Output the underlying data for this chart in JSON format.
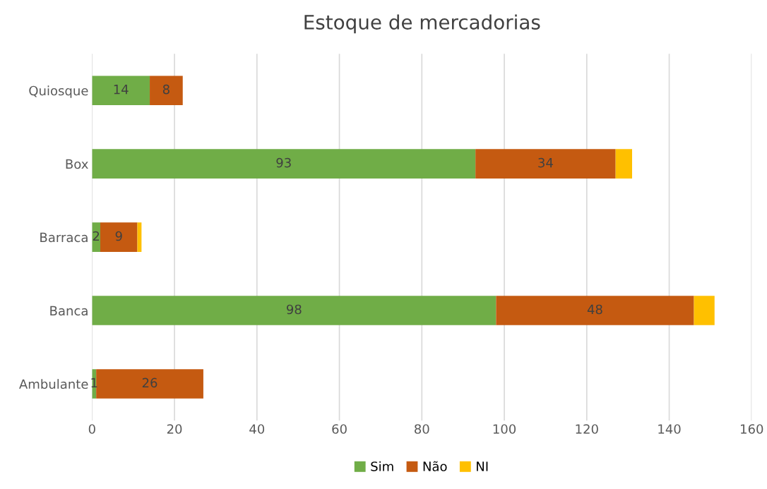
{
  "chart_data": {
    "type": "bar",
    "orientation": "horizontal",
    "stacked": true,
    "title": "Estoque de mercadorias",
    "categories": [
      "Quiosque",
      "Box",
      "Barraca",
      "Banca",
      "Ambulante"
    ],
    "series": [
      {
        "name": "Sim",
        "color": "#70ad47",
        "values": [
          14,
          93,
          2,
          98,
          1
        ],
        "value_labels": [
          "14",
          "93",
          "2",
          "98",
          "1"
        ]
      },
      {
        "name": "Não",
        "color": "#c55a11",
        "values": [
          8,
          34,
          9,
          48,
          26
        ],
        "value_labels": [
          "8",
          "34",
          "9",
          "48",
          "26"
        ]
      },
      {
        "name": "NI",
        "color": "#ffc000",
        "values": [
          null,
          4,
          1,
          5,
          null
        ]
      }
    ],
    "xlim": [
      0,
      160
    ],
    "xticks": [
      0,
      20,
      40,
      60,
      80,
      100,
      120,
      140,
      160
    ],
    "grid": "x",
    "legend": "bottom"
  }
}
